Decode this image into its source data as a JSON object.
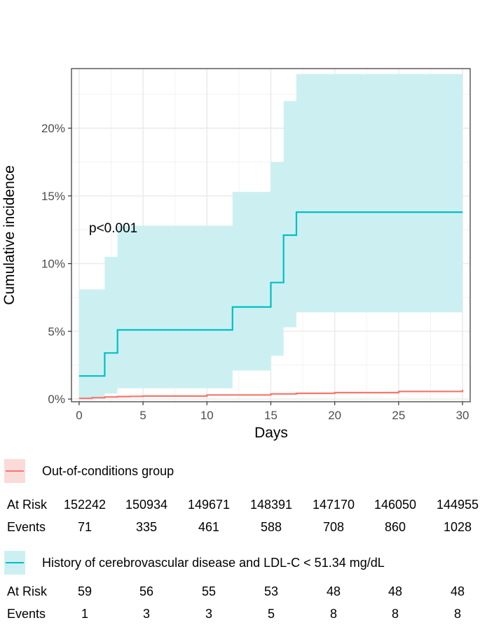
{
  "chart_data": {
    "type": "step-line",
    "xlabel": "Days",
    "ylabel": "Cumulative incidence",
    "xlim": [
      -0.6,
      30.6
    ],
    "ylim": [
      -0.2,
      24.4
    ],
    "xticks": [
      0,
      5,
      10,
      15,
      20,
      25,
      30
    ],
    "yticks": [
      0,
      5,
      10,
      15,
      20
    ],
    "ytick_labels": [
      "0%",
      "5%",
      "10%",
      "15%",
      "20%"
    ],
    "y_unit": "%",
    "grid": true,
    "annotation": "p<0.001",
    "series": [
      {
        "name": "Out-of-conditions group",
        "color": "#F8766D",
        "fill": "#FADBD8",
        "x": [
          0,
          1,
          2,
          3,
          4,
          5,
          10,
          15,
          17,
          20,
          25,
          30
        ],
        "y": [
          0.05,
          0.1,
          0.15,
          0.18,
          0.2,
          0.22,
          0.3,
          0.38,
          0.42,
          0.47,
          0.56,
          0.68
        ],
        "upper": [
          0.07,
          0.13,
          0.19,
          0.22,
          0.24,
          0.26,
          0.34,
          0.43,
          0.47,
          0.52,
          0.62,
          0.75
        ],
        "lower": [
          0.03,
          0.07,
          0.11,
          0.14,
          0.16,
          0.18,
          0.26,
          0.33,
          0.37,
          0.42,
          0.5,
          0.61
        ]
      },
      {
        "name": "History of cerebrovascular disease and LDL-C < 51.34 mg/dL",
        "color": "#00BFC4",
        "fill": "#CCF0F2",
        "x": [
          0,
          2,
          3,
          12,
          15,
          16,
          17,
          30
        ],
        "y": [
          1.7,
          3.4,
          5.1,
          6.8,
          8.6,
          12.1,
          13.8,
          13.8
        ],
        "upper": [
          8.1,
          10.5,
          12.8,
          15.3,
          17.5,
          22.0,
          24.0,
          24.0
        ],
        "lower": [
          0.0,
          0.4,
          0.8,
          2.1,
          3.2,
          5.3,
          6.4,
          6.4
        ]
      }
    ]
  },
  "risk_table": {
    "times": [
      0,
      5,
      10,
      15,
      20,
      25,
      30
    ],
    "at_risk_label": "At Risk",
    "events_label": "Events",
    "groups": [
      {
        "name": "Out-of-conditions group",
        "color": "#F8766D",
        "fill": "#FADBD8",
        "at_risk": [
          "152242",
          "150934",
          "149671",
          "148391",
          "147170",
          "146050",
          "144955"
        ],
        "events": [
          "71",
          "335",
          "461",
          "588",
          "708",
          "860",
          "1028"
        ]
      },
      {
        "name": "History of cerebrovascular disease and LDL-C < 51.34 mg/dL",
        "color": "#00BFC4",
        "fill": "#CCF0F2",
        "at_risk": [
          "59",
          "56",
          "55",
          "53",
          "48",
          "48",
          "48"
        ],
        "events": [
          "1",
          "3",
          "3",
          "5",
          "8",
          "8",
          "8"
        ]
      }
    ]
  }
}
